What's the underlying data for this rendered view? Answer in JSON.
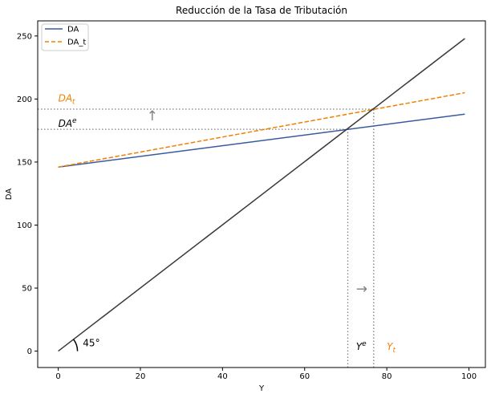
{
  "chart_data": {
    "type": "line",
    "title": "Reducción de la Tasa de Tributación",
    "xlabel": "Y",
    "ylabel": "DA",
    "xlim": [
      -5,
      104
    ],
    "ylim": [
      -13,
      262
    ],
    "xticks": [
      0,
      20,
      40,
      60,
      80,
      100
    ],
    "yticks": [
      0,
      50,
      100,
      150,
      200,
      250
    ],
    "xtick_labels": [
      "0",
      "20",
      "40",
      "60",
      "80",
      "100"
    ],
    "ytick_labels": [
      "0",
      "50",
      "100",
      "150",
      "200",
      "250"
    ],
    "grid": false,
    "legend": {
      "placement": "upper-left",
      "entries": [
        "DA",
        "DA_t"
      ]
    },
    "series": [
      {
        "name": "DA",
        "color": "#3a5aa0",
        "style": "solid",
        "x": [
          0,
          99
        ],
        "y": [
          146,
          188
        ]
      },
      {
        "name": "DA_t",
        "color": "#f08000",
        "style": "dashed",
        "x": [
          0,
          99
        ],
        "y": [
          146,
          205
        ]
      },
      {
        "color": "#3a3a3a",
        "style": "solid",
        "x": [
          0,
          99
        ],
        "y": [
          0,
          248
        ]
      }
    ],
    "reference_lines": {
      "horizontal": [
        {
          "y": 176,
          "x_to": 70.5
        },
        {
          "y": 192,
          "x_to": 76.8
        }
      ],
      "vertical": [
        {
          "x": 70.5,
          "y_to": 176
        },
        {
          "x": 76.8,
          "y_to": 192
        }
      ]
    },
    "annotations": [
      {
        "text": "DA",
        "sub": "t",
        "x": 0,
        "y": 198,
        "color": "#f08000"
      },
      {
        "text": "DA",
        "sup": "e",
        "x": 0,
        "y": 178,
        "color": "#000000"
      },
      {
        "text": "↑",
        "x": 21.5,
        "y": 183,
        "color": "#808080"
      },
      {
        "text": "→",
        "x": 72.5,
        "y": 46,
        "color": "#808080"
      },
      {
        "text": "Y",
        "sup": "e",
        "x": 72.5,
        "y": 1,
        "color": "#000000"
      },
      {
        "text": "Y",
        "sub": "t",
        "x": 80,
        "y": 1,
        "color": "#f08000"
      },
      {
        "text": "45°",
        "x": 6,
        "y": 4,
        "color": "#000000"
      }
    ]
  }
}
